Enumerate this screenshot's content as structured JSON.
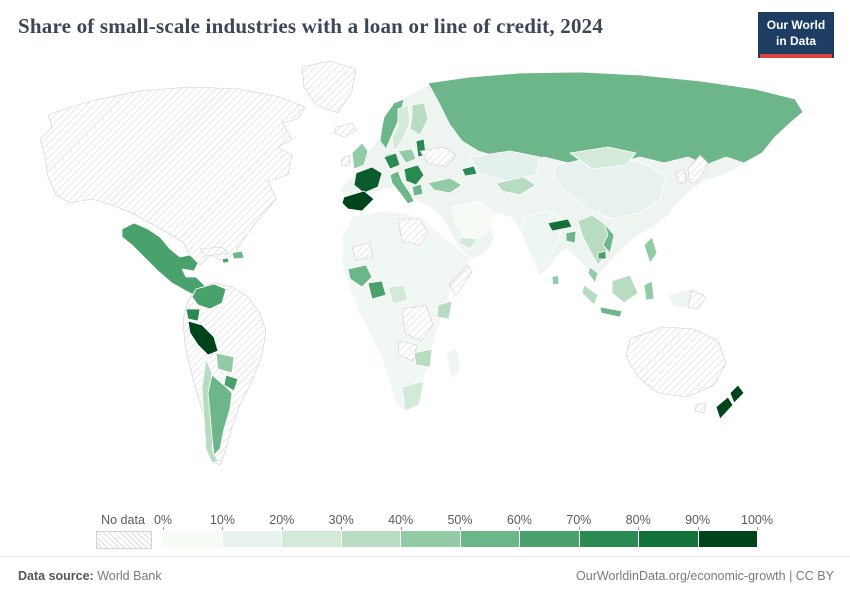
{
  "header": {
    "title": "Share of small-scale industries with a loan or line of credit, 2024",
    "logo_line1": "Our World",
    "logo_line2": "in Data",
    "logo_bg": "#1d3d63",
    "logo_accent": "#e0413d"
  },
  "legend": {
    "no_data_label": "No data",
    "ticks": [
      "0%",
      "10%",
      "20%",
      "30%",
      "40%",
      "50%",
      "60%",
      "70%",
      "80%",
      "90%",
      "100%"
    ],
    "bins": [
      {
        "range": "0-10%",
        "color": "#f7fbf5"
      },
      {
        "range": "10-20%",
        "color": "#e7f2ee"
      },
      {
        "range": "20-30%",
        "color": "#d4ead9"
      },
      {
        "range": "30-40%",
        "color": "#b7dcc1"
      },
      {
        "range": "40-50%",
        "color": "#93cba6"
      },
      {
        "range": "50-60%",
        "color": "#6cb689"
      },
      {
        "range": "60-70%",
        "color": "#49a16c"
      },
      {
        "range": "70-80%",
        "color": "#2b8a51"
      },
      {
        "range": "80-90%",
        "color": "#13713a"
      },
      {
        "range": "90-100%",
        "color": "#00441b"
      }
    ]
  },
  "map": {
    "fills": {
      "no_data": "url(#hatch)",
      "eurasia_base": "#eef5f0",
      "africa_base": "#f1f8f3",
      "mexico": "#49a16c",
      "caribbean_a": "#49a16c",
      "caribbean_b": "#6cb689",
      "colombia": "#49a16c",
      "ecuador": "#2b8a51",
      "peru": "#00441b",
      "bolivia": "#93cba6",
      "paraguay": "#49a16c",
      "chile": "#b7dcc1",
      "argentina": "#6cb689",
      "russia": "#6cb689",
      "norway": "#6cb689",
      "sweden": "#d4ead9",
      "finland": "#b7dcc1",
      "denmark": "#13713a",
      "baltics": "#2b8a51",
      "uk": "#93cba6",
      "germany": "#2b8a51",
      "poland": "#93cba6",
      "france": "#0a5c2c",
      "iberia": "#00441b",
      "italy": "#6cb689",
      "balkans": "#2b8a51",
      "greece": "#6cb689",
      "turkey": "#93cba6",
      "caucasus": "#2b8a51",
      "kazakhstan": "#e3f0ed",
      "central_asia": "#b7dcc1",
      "china": "#e7f2ee",
      "mongolia": "#d4ead9",
      "india": "#edf6f1",
      "nepal": "#13713a",
      "bangladesh": "#6cb689",
      "sri_lanka": "#93cba6",
      "indochina": "#b7dcc1",
      "vietnam": "#6cb689",
      "cambodia": "#49a16c",
      "malaysia": "#93cba6",
      "sumatra": "#b7dcc1",
      "java": "#6cb689",
      "borneo": "#b7dcc1",
      "sulawesi": "#93cba6",
      "new_guinea": "#edf6f1",
      "philippines": "#93cba6",
      "saudi": "#f7fbf5",
      "yemen": "#d4ead9",
      "west_africa": "#6cb689",
      "ghana": "#49a16c",
      "nigeria": "#d4ead9",
      "kenya": "#b7dcc1",
      "zambia": "#b7dcc1",
      "south_africa": "#d4ead9",
      "madagascar": "#edf6f1",
      "new_zealand": "#00441b"
    }
  },
  "footer": {
    "source_label": "Data source:",
    "source_value": "World Bank",
    "credit": "OurWorldinData.org/economic-growth | CC BY"
  }
}
